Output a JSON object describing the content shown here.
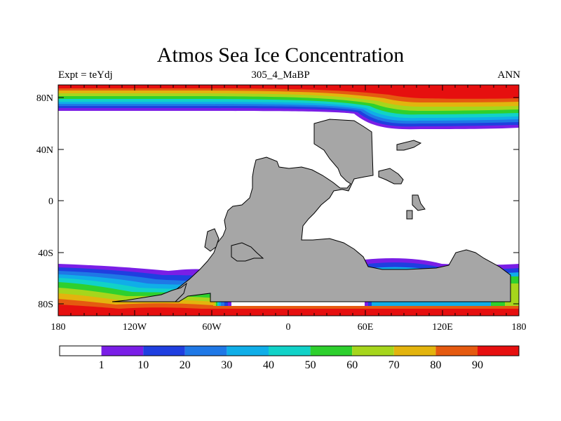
{
  "title": "Atmos Sea Ice Concentration",
  "subtitle_left": "Expt = teYdj",
  "subtitle_center": "305_4_MaBP",
  "subtitle_right": "ANN",
  "map": {
    "lon_range": [
      -180,
      180
    ],
    "lat_range": [
      -90,
      90
    ],
    "y_tick_labels": [
      "80N",
      "40N",
      "0",
      "40S",
      "80S"
    ],
    "x_tick_labels": [
      "180",
      "120W",
      "60W",
      "0",
      "60E",
      "120E",
      "180"
    ],
    "land_color": "#a6a6a6",
    "ocean_color": "#ffffff"
  },
  "colorbar": {
    "labels": [
      "1",
      "10",
      "20",
      "30",
      "40",
      "50",
      "60",
      "70",
      "80",
      "90"
    ],
    "colors": [
      "#ffffff",
      "#7a1ee6",
      "#1f3fe0",
      "#1f78e6",
      "#10aee8",
      "#11d2c8",
      "#2ed02e",
      "#a6d61c",
      "#e3b40e",
      "#e55a10",
      "#e60f0f"
    ]
  }
}
